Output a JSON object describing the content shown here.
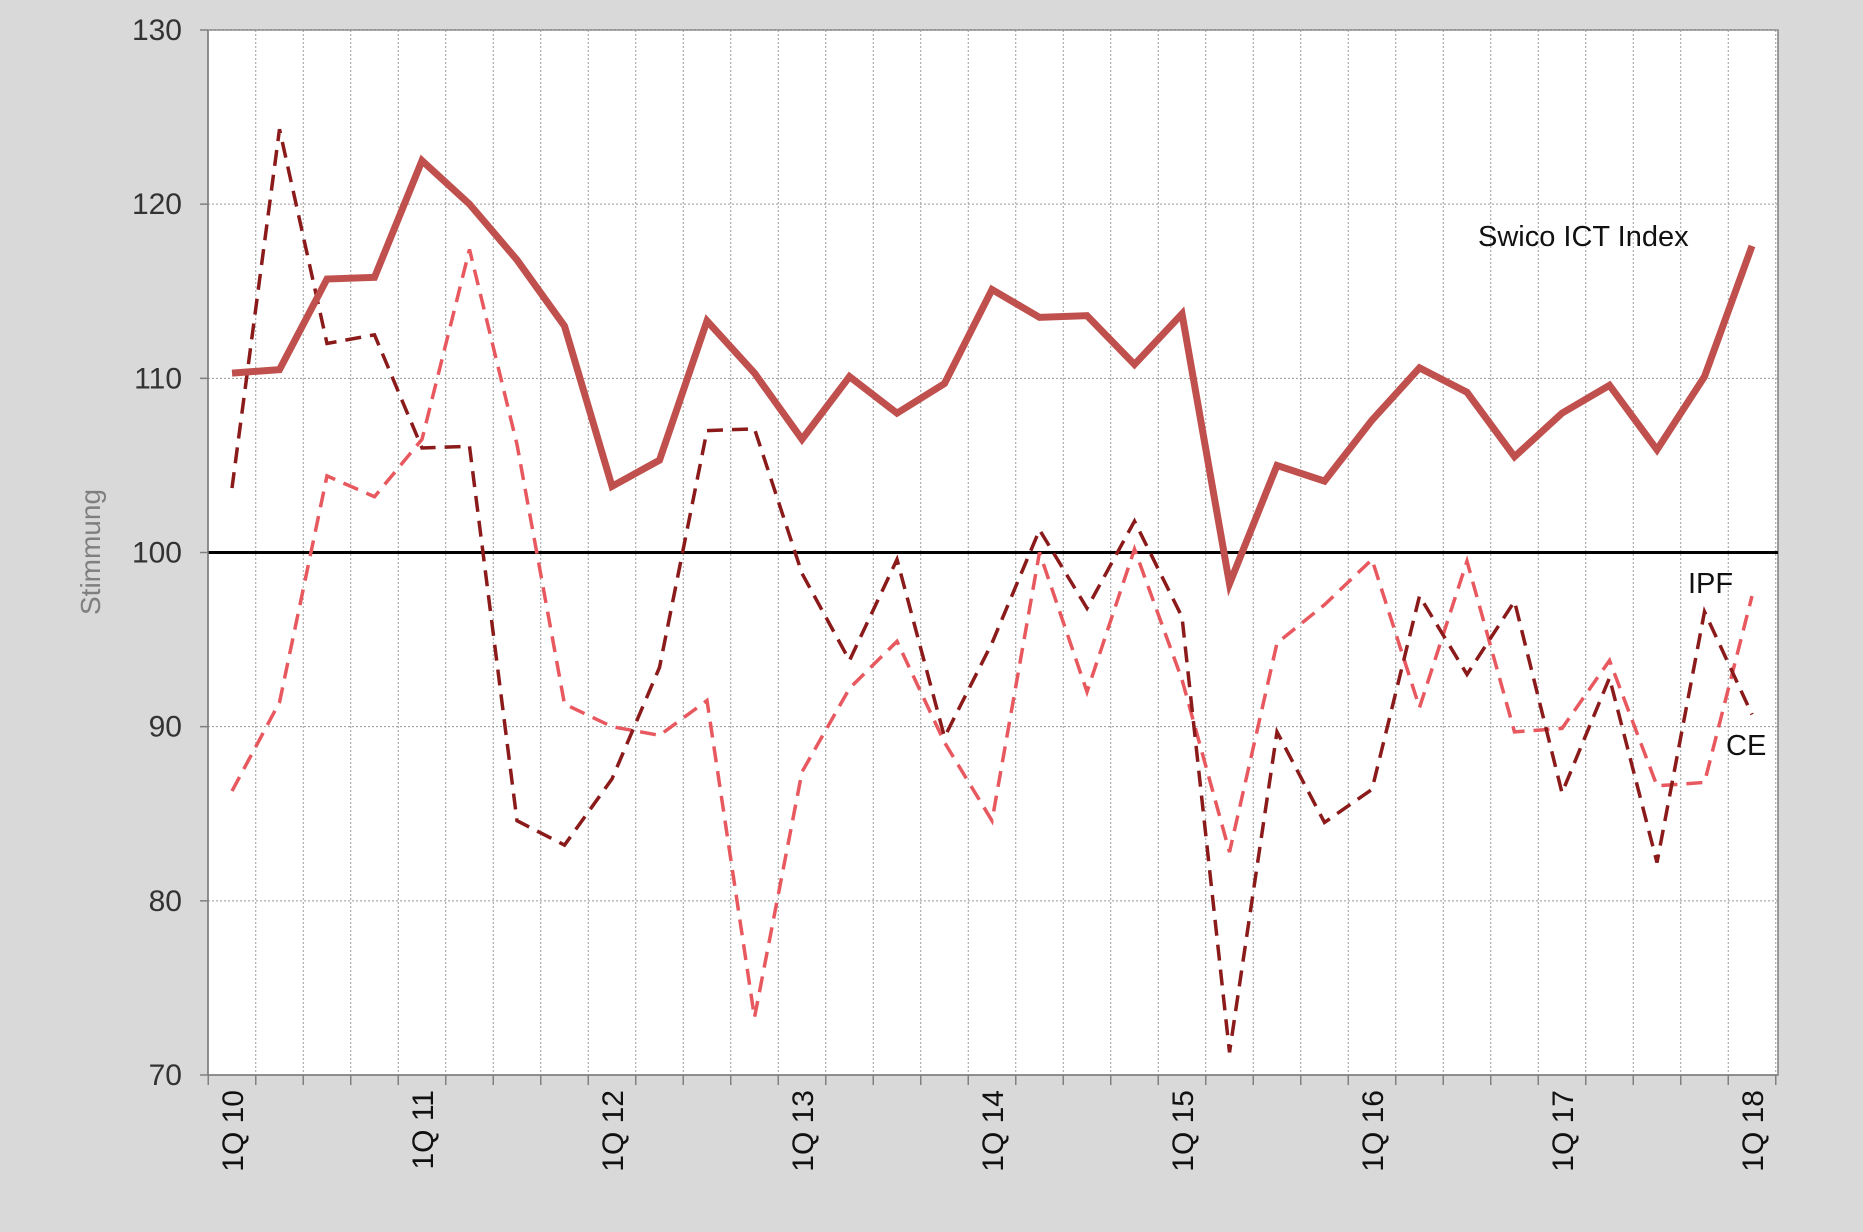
{
  "chart_data": {
    "type": "line",
    "title": "",
    "xlabel": "",
    "ylabel": "Stimmung",
    "ylim": [
      70,
      130
    ],
    "yticks": [
      70,
      80,
      90,
      100,
      110,
      120,
      130
    ],
    "reference_line": 100,
    "grid": true,
    "x_tick_labels": [
      "1Q 10",
      "1Q 11",
      "1Q 12",
      "1Q 13",
      "1Q 14",
      "1Q 15",
      "1Q 16",
      "1Q 17",
      "1Q 18"
    ],
    "categories": [
      "1Q 10",
      "2Q 10",
      "3Q 10",
      "4Q 10",
      "1Q 11",
      "2Q 11",
      "3Q 11",
      "4Q 11",
      "1Q 12",
      "2Q 12",
      "3Q 12",
      "4Q 12",
      "1Q 13",
      "2Q 13",
      "3Q 13",
      "4Q 13",
      "1Q 14",
      "2Q 14",
      "3Q 14",
      "4Q 14",
      "1Q 15",
      "2Q 15",
      "3Q 15",
      "4Q 15",
      "1Q 16",
      "2Q 16",
      "3Q 16",
      "4Q 16",
      "1Q 17",
      "2Q 17",
      "3Q 17",
      "4Q 17",
      "1Q 18"
    ],
    "series": [
      {
        "name": "Swico ICT Index",
        "color": "#c0504d",
        "style": "solid",
        "values": [
          110.3,
          110.5,
          115.7,
          115.8,
          122.5,
          120.0,
          116.8,
          113.0,
          103.8,
          105.3,
          113.3,
          110.3,
          106.5,
          110.1,
          108.0,
          109.7,
          115.1,
          113.5,
          113.6,
          110.8,
          113.7,
          98.2,
          105.0,
          104.1,
          107.6,
          110.6,
          109.2,
          105.5,
          108.0,
          109.6,
          105.9,
          110.1,
          117.6
        ]
      },
      {
        "name": "IPF",
        "color": "#e8585f",
        "style": "dashed",
        "values": [
          86.3,
          91.4,
          104.4,
          103.2,
          106.5,
          117.4,
          106.2,
          91.3,
          90.0,
          89.5,
          91.5,
          73.3,
          87.4,
          92.2,
          94.9,
          89.1,
          84.6,
          100.0,
          92.0,
          100.2,
          92.7,
          82.8,
          94.8,
          97.0,
          99.6,
          91.1,
          99.5,
          89.7,
          89.9,
          93.8,
          86.6,
          86.8,
          97.5
        ]
      },
      {
        "name": "CE",
        "color": "#8b1a1a",
        "style": "dashed",
        "values": [
          103.7,
          124.3,
          112.0,
          112.5,
          106.0,
          106.1,
          84.6,
          83.2,
          87.0,
          93.4,
          107.0,
          107.1,
          98.8,
          93.8,
          99.6,
          89.4,
          94.8,
          101.3,
          96.8,
          101.8,
          96.3,
          71.3,
          89.7,
          84.5,
          86.4,
          97.5,
          93.0,
          97.2,
          86.2,
          92.8,
          82.2,
          96.6,
          90.7
        ]
      }
    ],
    "annotations": [
      {
        "text": "Swico ICT Index",
        "series": "Swico ICT Index"
      },
      {
        "text": "IPF",
        "series": "IPF"
      },
      {
        "text": "CE",
        "series": "CE"
      }
    ]
  }
}
